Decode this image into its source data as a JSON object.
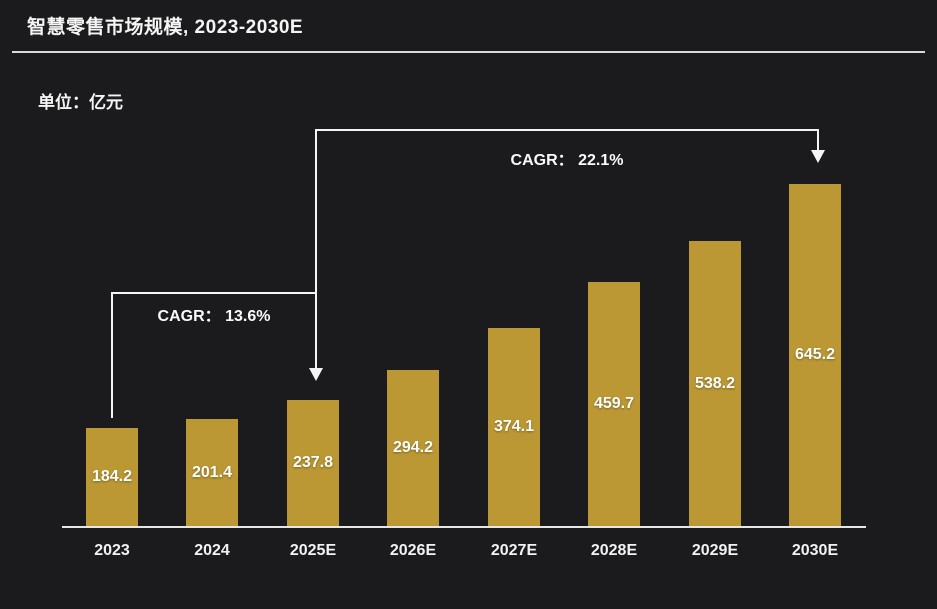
{
  "header": {
    "title": "智慧零售市场规模, 2023-2030E",
    "unit_label": "单位：亿元"
  },
  "chart_data": {
    "type": "bar",
    "title": "智慧零售市场规模, 2023-2030E",
    "xlabel": "",
    "ylabel": "亿元",
    "categories": [
      "2023",
      "2024",
      "2025E",
      "2026E",
      "2027E",
      "2028E",
      "2029E",
      "2030E"
    ],
    "values": [
      184.2,
      201.4,
      237.8,
      294.2,
      374.1,
      459.7,
      538.2,
      645.2
    ],
    "value_labels": [
      "184.2",
      "201.4",
      "237.8",
      "294.2",
      "374.1",
      "459.7",
      "538.2",
      "645.2"
    ],
    "ylim": [
      0,
      760
    ],
    "grid": false,
    "legend": "none",
    "bar_color": "#bb9834",
    "background_color": "#1b1a1c",
    "annotations": [
      {
        "label": "CAGR： 13.6%",
        "from": "2023",
        "to": "2025E"
      },
      {
        "label": "CAGR： 22.1%",
        "from": "2025E",
        "to": "2030E"
      }
    ]
  }
}
